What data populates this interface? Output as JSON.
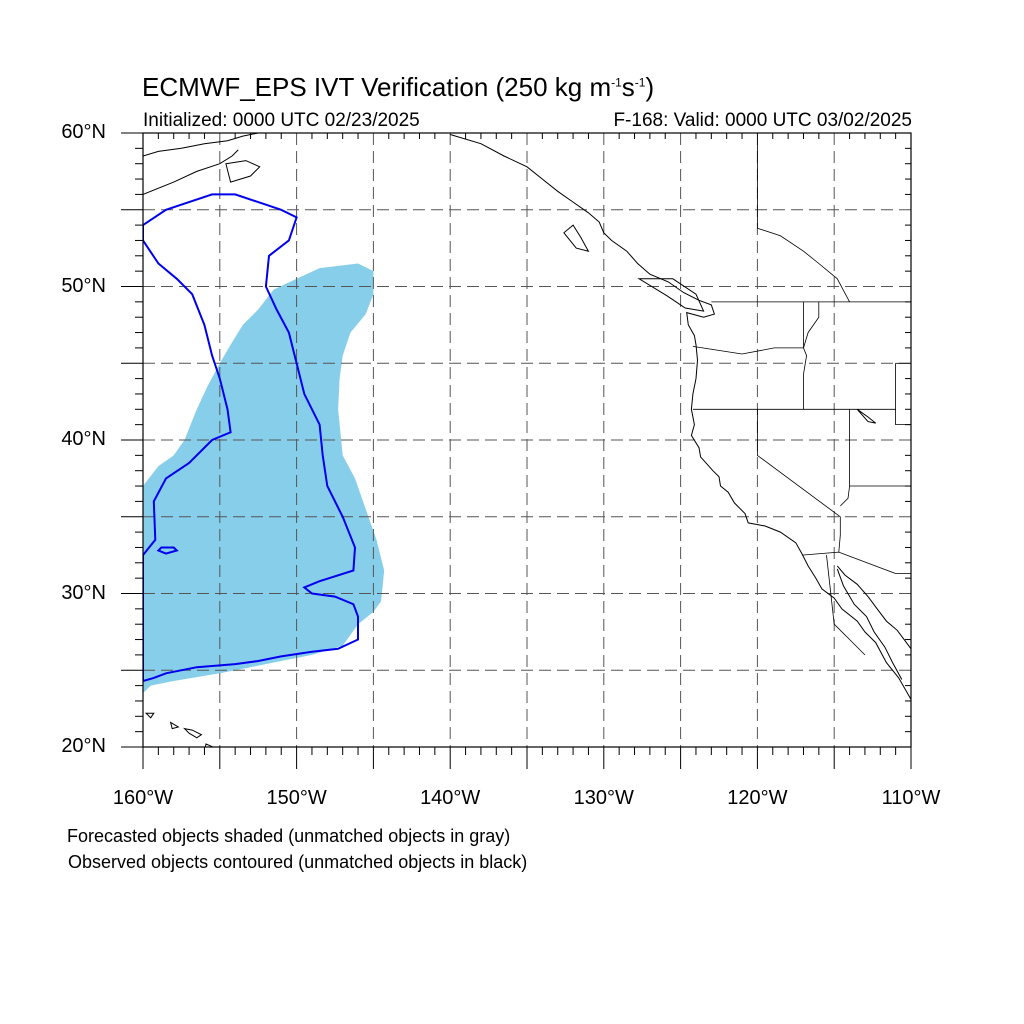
{
  "title": {
    "main": "ECMWF_EPS IVT Verification (250 kg m",
    "exp1": "-1",
    "mid": "s",
    "exp2": "-1",
    "end": ")"
  },
  "subtitle_left": "Initialized: 0000 UTC 02/23/2025",
  "subtitle_right": "F-168: Valid: 0000 UTC 03/02/2025",
  "y_labels": [
    {
      "text": "60°N",
      "value": 60
    },
    {
      "text": "50°N",
      "value": 50
    },
    {
      "text": "40°N",
      "value": 40
    },
    {
      "text": "30°N",
      "value": 30
    },
    {
      "text": "20°N",
      "value": 20
    }
  ],
  "x_labels": [
    {
      "text": "160°W",
      "value": -160
    },
    {
      "text": "150°W",
      "value": -150
    },
    {
      "text": "140°W",
      "value": -140
    },
    {
      "text": "130°W",
      "value": -130
    },
    {
      "text": "120°W",
      "value": -120
    },
    {
      "text": "110°W",
      "value": -110
    }
  ],
  "notes": [
    "Forecasted objects shaded (unmatched objects in gray)",
    "Observed objects contoured (unmatched objects in black)"
  ],
  "map": {
    "lon_range": [
      -160,
      -110
    ],
    "lat_range": [
      20,
      60
    ],
    "grid_lons": [
      -155,
      -150,
      -145,
      -140,
      -135,
      -130,
      -125,
      -120,
      -115
    ],
    "grid_lats": [
      25,
      30,
      35,
      40,
      45,
      50,
      55
    ],
    "forecast_fill_color": "#87ceeb",
    "observed_contour_color": "#0000ee",
    "forecast_object": [
      [
        -160,
        23.5
      ],
      [
        -159.5,
        24
      ],
      [
        -158,
        24.3
      ],
      [
        -155,
        24.8
      ],
      [
        -153,
        25.2
      ],
      [
        -151,
        25.6
      ],
      [
        -149,
        26.0
      ],
      [
        -147,
        26.6
      ],
      [
        -146,
        28.0
      ],
      [
        -145,
        28.8
      ],
      [
        -144.5,
        29.5
      ],
      [
        -144.3,
        31.5
      ],
      [
        -144.8,
        33.5
      ],
      [
        -145.5,
        35.5
      ],
      [
        -146.2,
        37.5
      ],
      [
        -147.0,
        39.0
      ],
      [
        -147.3,
        42.0
      ],
      [
        -147.2,
        44.0
      ],
      [
        -147.0,
        45.5
      ],
      [
        -146.5,
        47.0
      ],
      [
        -145.5,
        48.2
      ],
      [
        -145.0,
        49.5
      ],
      [
        -145.0,
        51.0
      ],
      [
        -146.0,
        51.5
      ],
      [
        -148.5,
        51.2
      ],
      [
        -150.0,
        50.5
      ],
      [
        -151.5,
        49.8
      ],
      [
        -152.5,
        48.5
      ],
      [
        -153.5,
        47.5
      ],
      [
        -154.3,
        46.2
      ],
      [
        -155.0,
        45.0
      ],
      [
        -155.8,
        43.5
      ],
      [
        -156.5,
        42.0
      ],
      [
        -157.3,
        40.0
      ],
      [
        -158.0,
        39.0
      ],
      [
        -159.0,
        38.3
      ],
      [
        -160,
        37.0
      ]
    ],
    "observed_object": [
      [
        -160,
        24.3
      ],
      [
        -159.3,
        24.5
      ],
      [
        -158.5,
        24.8
      ],
      [
        -156.5,
        25.2
      ],
      [
        -154.0,
        25.4
      ],
      [
        -152.5,
        25.6
      ],
      [
        -151.0,
        25.9
      ],
      [
        -149.0,
        26.2
      ],
      [
        -147.3,
        26.4
      ],
      [
        -146.0,
        27.0
      ],
      [
        -146.0,
        28.5
      ],
      [
        -146.3,
        29.3
      ],
      [
        -147.5,
        29.8
      ],
      [
        -149.0,
        30.0
      ],
      [
        -149.5,
        30.4
      ],
      [
        -148.5,
        30.8
      ],
      [
        -146.3,
        31.5
      ],
      [
        -146.2,
        33.0
      ],
      [
        -147.0,
        35.0
      ],
      [
        -148.0,
        37.0
      ],
      [
        -148.3,
        39.0
      ],
      [
        -148.5,
        41.0
      ],
      [
        -149.5,
        43.0
      ],
      [
        -150.0,
        45.0
      ],
      [
        -150.5,
        47.0
      ],
      [
        -151.3,
        48.5
      ],
      [
        -152.0,
        50.0
      ],
      [
        -151.8,
        52.0
      ],
      [
        -150.5,
        53.0
      ],
      [
        -150.0,
        54.5
      ],
      [
        -151.0,
        55.0
      ],
      [
        -152.5,
        55.5
      ],
      [
        -154.0,
        56.0
      ],
      [
        -155.5,
        56.0
      ],
      [
        -157.0,
        55.5
      ],
      [
        -158.5,
        55.0
      ],
      [
        -160,
        54.0
      ],
      [
        -160,
        53.0
      ],
      [
        -159.0,
        51.5
      ],
      [
        -157.8,
        50.5
      ],
      [
        -156.8,
        49.5
      ],
      [
        -156.0,
        47.5
      ],
      [
        -155.5,
        45.5
      ],
      [
        -155.0,
        44.0
      ],
      [
        -154.5,
        42.0
      ],
      [
        -154.3,
        40.5
      ],
      [
        -155.5,
        40.0
      ],
      [
        -157.0,
        38.5
      ],
      [
        -158.5,
        37.5
      ],
      [
        -159.3,
        36.0
      ],
      [
        -159.2,
        33.5
      ],
      [
        -160,
        32.5
      ]
    ],
    "observed_small": [
      [
        -158.8,
        33.0
      ],
      [
        -158.0,
        33.0
      ],
      [
        -157.8,
        32.8
      ],
      [
        -158.5,
        32.6
      ],
      [
        -159.0,
        32.8
      ]
    ],
    "coast_west": [
      [
        -140,
        59.9
      ],
      [
        -138,
        59.3
      ],
      [
        -136.5,
        58.5
      ],
      [
        -135.0,
        57.8
      ],
      [
        -134.0,
        57.0
      ],
      [
        -133.0,
        56.2
      ],
      [
        -132.0,
        55.5
      ],
      [
        -131.0,
        54.8
      ],
      [
        -130.3,
        54.2
      ],
      [
        -130.0,
        53.5
      ],
      [
        -129.5,
        53.0
      ],
      [
        -128.5,
        52.3
      ],
      [
        -127.8,
        51.5
      ],
      [
        -127.0,
        50.8
      ],
      [
        -125.8,
        50.3
      ],
      [
        -124.8,
        49.6
      ],
      [
        -123.8,
        49.1
      ],
      [
        -123.0,
        48.8
      ],
      [
        -122.8,
        48.2
      ],
      [
        -123.5,
        48.0
      ],
      [
        -124.6,
        48.3
      ],
      [
        -124.5,
        47.5
      ],
      [
        -124.1,
        46.8
      ],
      [
        -124.0,
        46.2
      ],
      [
        -123.9,
        45.2
      ],
      [
        -124.0,
        44.0
      ],
      [
        -124.2,
        43.0
      ],
      [
        -124.3,
        42.0
      ],
      [
        -124.1,
        41.0
      ],
      [
        -124.3,
        40.3
      ],
      [
        -123.8,
        39.5
      ],
      [
        -123.7,
        38.9
      ],
      [
        -122.9,
        38.0
      ],
      [
        -122.5,
        37.6
      ],
      [
        -122.4,
        37.0
      ],
      [
        -121.9,
        36.6
      ],
      [
        -121.5,
        35.9
      ],
      [
        -120.8,
        35.2
      ],
      [
        -120.6,
        34.6
      ],
      [
        -119.5,
        34.4
      ],
      [
        -118.5,
        34.0
      ],
      [
        -117.5,
        33.3
      ],
      [
        -117.1,
        32.6
      ],
      [
        -116.7,
        31.8
      ],
      [
        -116.2,
        31.0
      ],
      [
        -115.8,
        30.3
      ],
      [
        -115.0,
        29.7
      ],
      [
        -114.5,
        29.0
      ],
      [
        -113.5,
        28.2
      ],
      [
        -113.0,
        27.5
      ],
      [
        -112.3,
        26.8
      ],
      [
        -111.6,
        25.5
      ],
      [
        -110.8,
        24.5
      ],
      [
        -110.0,
        23.1
      ]
    ],
    "gulf_coast": [
      [
        -114.8,
        31.8
      ],
      [
        -114.3,
        31.2
      ],
      [
        -113.5,
        30.6
      ],
      [
        -112.8,
        29.8
      ],
      [
        -112.2,
        29.0
      ],
      [
        -111.6,
        28.2
      ],
      [
        -110.9,
        27.6
      ],
      [
        -110.3,
        26.8
      ],
      [
        -110.0,
        26.4
      ]
    ],
    "baja_east": [
      [
        -114.8,
        31.6
      ],
      [
        -114.4,
        30.5
      ],
      [
        -113.7,
        29.3
      ],
      [
        -112.9,
        28.5
      ],
      [
        -112.4,
        27.5
      ],
      [
        -111.7,
        26.5
      ],
      [
        -111.2,
        25.5
      ],
      [
        -110.6,
        24.4
      ]
    ],
    "borders": [
      [
        [
          -123.0,
          49.0
        ],
        [
          -110,
          49.0
        ]
      ],
      [
        [
          -117.0,
          49.0
        ],
        [
          -117.0,
          46.0
        ],
        [
          -116.8,
          45.5
        ],
        [
          -117.0,
          44.3
        ],
        [
          -117.0,
          42.0
        ]
      ],
      [
        [
          -124.2,
          46.1
        ],
        [
          -121.0,
          45.6
        ],
        [
          -118.9,
          46.0
        ],
        [
          -117.0,
          46.0
        ]
      ],
      [
        [
          -124.2,
          42.0
        ],
        [
          -111.0,
          42.0
        ]
      ],
      [
        [
          -120.0,
          42.0
        ],
        [
          -120.0,
          39.0
        ],
        [
          -114.6,
          35.0
        ],
        [
          -114.6,
          33.8
        ],
        [
          -114.7,
          32.7
        ]
      ],
      [
        [
          -117.1,
          32.5
        ],
        [
          -114.7,
          32.7
        ],
        [
          -111.0,
          31.3
        ],
        [
          -110,
          31.3
        ]
      ],
      [
        [
          -114.0,
          42.0
        ],
        [
          -114.0,
          37.0
        ],
        [
          -110,
          37.0
        ]
      ],
      [
        [
          -114.0,
          37.0
        ],
        [
          -114.1,
          36.2
        ],
        [
          -114.6,
          35.7
        ]
      ],
      [
        [
          -116.0,
          49.0
        ],
        [
          -116.0,
          48.0
        ],
        [
          -116.7,
          47.0
        ],
        [
          -117.0,
          46.0
        ]
      ],
      [
        [
          -111.0,
          45.0
        ],
        [
          -110,
          45.0
        ]
      ],
      [
        [
          -111.0,
          45.0
        ],
        [
          -111.0,
          41.0
        ],
        [
          -110,
          41.0
        ]
      ],
      [
        [
          -115.5,
          32.5
        ],
        [
          -115.0,
          28.0
        ],
        [
          -114.0,
          27.0
        ],
        [
          -113.0,
          26.0
        ]
      ],
      [
        [
          -120.0,
          60
        ],
        [
          -120.0,
          53.8
        ],
        [
          -118.5,
          53.3
        ],
        [
          -117.0,
          52.3
        ],
        [
          -116.0,
          51.5
        ],
        [
          -114.8,
          50.5
        ],
        [
          -114.0,
          49.0
        ]
      ]
    ],
    "islands": [
      [
        [
          -125.5,
          50.5
        ],
        [
          -124.0,
          49.5
        ],
        [
          -123.5,
          48.4
        ],
        [
          -124.7,
          48.6
        ],
        [
          -125.9,
          49.4
        ],
        [
          -127.7,
          50.5
        ],
        [
          -125.5,
          50.5
        ]
      ],
      [
        [
          -132.0,
          54.0
        ],
        [
          -131.5,
          53.2
        ],
        [
          -131.0,
          52.3
        ],
        [
          -131.8,
          52.5
        ],
        [
          -132.6,
          53.5
        ],
        [
          -132.0,
          54.0
        ]
      ],
      [
        [
          -155.9,
          20.2
        ],
        [
          -155.0,
          19.8
        ],
        [
          -154.8,
          19.5
        ],
        [
          -155.6,
          18.9
        ],
        [
          -156.0,
          19.7
        ],
        [
          -155.9,
          20.2
        ]
      ],
      [
        [
          -157.3,
          21.2
        ],
        [
          -156.8,
          21.1
        ],
        [
          -156.2,
          20.8
        ],
        [
          -156.5,
          20.6
        ],
        [
          -157.0,
          20.9
        ],
        [
          -157.3,
          21.2
        ]
      ],
      [
        [
          -158.2,
          21.6
        ],
        [
          -157.7,
          21.3
        ],
        [
          -158.1,
          21.2
        ],
        [
          -158.2,
          21.6
        ]
      ],
      [
        [
          -159.8,
          22.2
        ],
        [
          -159.3,
          22.2
        ],
        [
          -159.5,
          21.9
        ],
        [
          -159.8,
          22.2
        ]
      ],
      [
        [
          -113.5,
          42.0
        ],
        [
          -112.8,
          41.5
        ],
        [
          -112.3,
          41.1
        ],
        [
          -112.8,
          41.2
        ],
        [
          -113.5,
          42.0
        ]
      ]
    ],
    "alaska_coast": [
      [
        -160,
        58.5
      ],
      [
        -159.0,
        58.8
      ],
      [
        -157.5,
        59.0
      ],
      [
        -156.0,
        59.3
      ],
      [
        -154.5,
        59.5
      ],
      [
        -153.5,
        59.8
      ],
      [
        -152.5,
        60
      ]
    ],
    "alaska_peninsula": [
      [
        -160,
        56.0
      ],
      [
        -158.0,
        56.8
      ],
      [
        -156.5,
        57.5
      ],
      [
        -155.0,
        58.0
      ],
      [
        -154.2,
        58.5
      ],
      [
        -153.8,
        58.9
      ]
    ],
    "kodiak": [
      [
        -154.6,
        58.0
      ],
      [
        -153.3,
        58.2
      ],
      [
        -152.4,
        57.8
      ],
      [
        -153.0,
        57.2
      ],
      [
        -154.3,
        56.8
      ],
      [
        -154.6,
        58.0
      ]
    ]
  }
}
